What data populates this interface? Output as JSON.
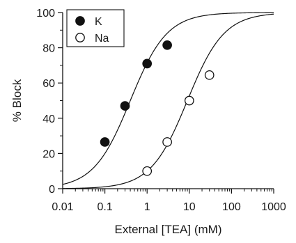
{
  "chart_data": {
    "type": "scatter",
    "xlabel": "External [TEA] (mM)",
    "ylabel": "% Block",
    "x_scale": "log",
    "xlim": [
      0.01,
      1000
    ],
    "ylim": [
      0,
      100
    ],
    "x_ticks": [
      0.01,
      0.1,
      1,
      10,
      100,
      1000
    ],
    "x_tick_labels": [
      "0.01",
      "0.1",
      "1",
      "10",
      "100",
      "1000"
    ],
    "y_ticks": [
      0,
      20,
      40,
      60,
      80,
      100
    ],
    "y_tick_labels": [
      "0",
      "20",
      "40",
      "60",
      "80",
      "100"
    ],
    "grid": false,
    "legend_position": "top-left",
    "series": [
      {
        "name": "K",
        "marker": "filled-circle",
        "color": "#111111",
        "x": [
          0.1,
          0.3,
          1,
          3
        ],
        "y": [
          26.5,
          47,
          71,
          81.5
        ],
        "fit_curve": {
          "model": "hill",
          "ic50": 0.4,
          "n": 1
        }
      },
      {
        "name": "Na",
        "marker": "open-circle",
        "color": "#111111",
        "x": [
          1,
          3,
          10,
          30
        ],
        "y": [
          10,
          26.5,
          50,
          64.5
        ],
        "fit_curve": {
          "model": "hill",
          "ic50": 9,
          "n": 1
        }
      }
    ]
  }
}
